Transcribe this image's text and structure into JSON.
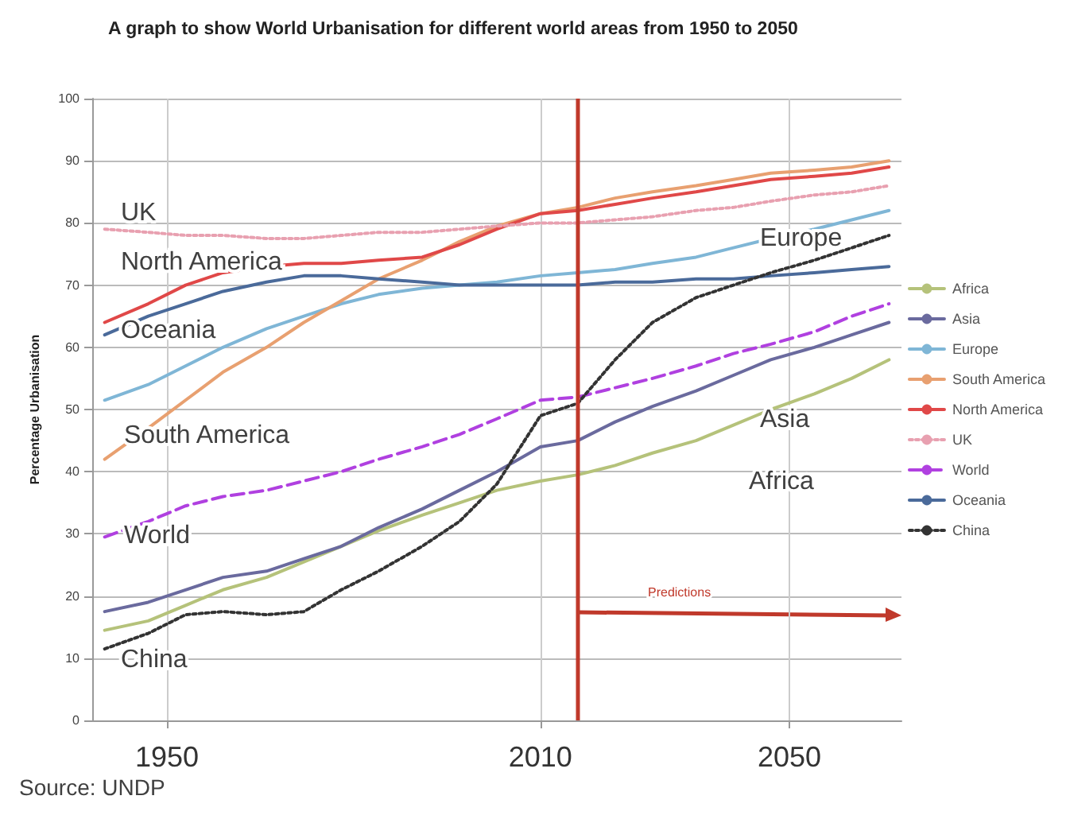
{
  "chart_data": {
    "type": "line",
    "title": "A graph to show World Urbanisation for different world areas from 1950 to 2050",
    "ylabel": "Percentage Urbanisation",
    "x": [
      1940,
      1947,
      1953,
      1959,
      1966,
      1972,
      1978,
      1984,
      1991,
      1997,
      2003,
      2010,
      2016,
      2022,
      2028,
      2035,
      2041,
      2047,
      2054,
      2060,
      2066
    ],
    "xlim": [
      1938,
      2068
    ],
    "xticks": [
      1950,
      2010,
      2050
    ],
    "ylim": [
      0,
      100
    ],
    "yticks": [
      0,
      10,
      20,
      30,
      40,
      50,
      60,
      70,
      80,
      90,
      100
    ],
    "series": [
      {
        "name": "Africa",
        "color": "#b5c27a",
        "line_style": "solid",
        "values": [
          14.5,
          16,
          18.5,
          21,
          23,
          25.5,
          28,
          30.5,
          33,
          35,
          37,
          38.5,
          39.5,
          41,
          43,
          45,
          47.5,
          50,
          52.5,
          55,
          58
        ]
      },
      {
        "name": "Asia",
        "color": "#6a6a9e",
        "line_style": "solid",
        "values": [
          17.5,
          19,
          21,
          23,
          24,
          26,
          28,
          31,
          34,
          37,
          40,
          44,
          45,
          48,
          50.5,
          53,
          55.5,
          58,
          60,
          62,
          64
        ]
      },
      {
        "name": "Europe",
        "color": "#7fb6d6",
        "line_style": "solid",
        "values": [
          51.5,
          54,
          57,
          60,
          63,
          65,
          67,
          68.5,
          69.5,
          70,
          70.5,
          71.5,
          72,
          72.5,
          73.5,
          74.5,
          76,
          77.5,
          79,
          80.5,
          82
        ]
      },
      {
        "name": "South America",
        "color": "#e8a070",
        "line_style": "solid",
        "values": [
          42,
          47,
          51.5,
          56,
          60,
          64,
          67.5,
          71,
          74,
          77,
          79.5,
          81.5,
          82.5,
          84,
          85,
          86,
          87,
          88,
          88.5,
          89,
          90
        ]
      },
      {
        "name": "North America",
        "color": "#e04848",
        "line_style": "solid",
        "values": [
          64,
          67,
          70,
          72,
          73,
          73.5,
          73.5,
          74,
          74.5,
          76.5,
          79,
          81.5,
          82,
          83,
          84,
          85,
          86,
          87,
          87.5,
          88,
          89
        ]
      },
      {
        "name": "UK",
        "color": "#e8a0b0",
        "line_style": "dotted",
        "values": [
          79,
          78.5,
          78,
          78,
          77.5,
          77.5,
          78,
          78.5,
          78.5,
          79,
          79.5,
          80,
          80,
          80.5,
          81,
          82,
          82.5,
          83.5,
          84.5,
          85,
          86
        ]
      },
      {
        "name": "World",
        "color": "#b040e0",
        "line_style": "dashed",
        "values": [
          29.5,
          32,
          34.5,
          36,
          37,
          38.5,
          40,
          42,
          44,
          46,
          48.5,
          51.5,
          52,
          53.5,
          55,
          57,
          59,
          60.5,
          62.5,
          65,
          67
        ]
      },
      {
        "name": "Oceania",
        "color": "#4a6a9a",
        "line_style": "solid",
        "values": [
          62,
          65,
          67,
          69,
          70.5,
          71.5,
          71.5,
          71,
          70.5,
          70,
          70,
          70,
          70,
          70.5,
          70.5,
          71,
          71,
          71.5,
          72,
          72.5,
          73
        ]
      },
      {
        "name": "China",
        "color": "#333333",
        "line_style": "dotted",
        "values": [
          11.5,
          14,
          17,
          17.5,
          17,
          17.5,
          21,
          24,
          28,
          32,
          38,
          49,
          51,
          58,
          64,
          68,
          70,
          72,
          74,
          76,
          78
        ]
      }
    ],
    "ref_lines": [
      {
        "axis": "x",
        "value": 2016,
        "color": "#c0392b",
        "line_style": "solid"
      }
    ],
    "annotations": [
      "UK",
      "North America",
      "Oceania",
      "South America",
      "World",
      "China",
      "Europe",
      "Asia",
      "Africa",
      "Predictions",
      "Source: UNDP"
    ],
    "grid": true,
    "legend": "right",
    "marker": "none"
  }
}
